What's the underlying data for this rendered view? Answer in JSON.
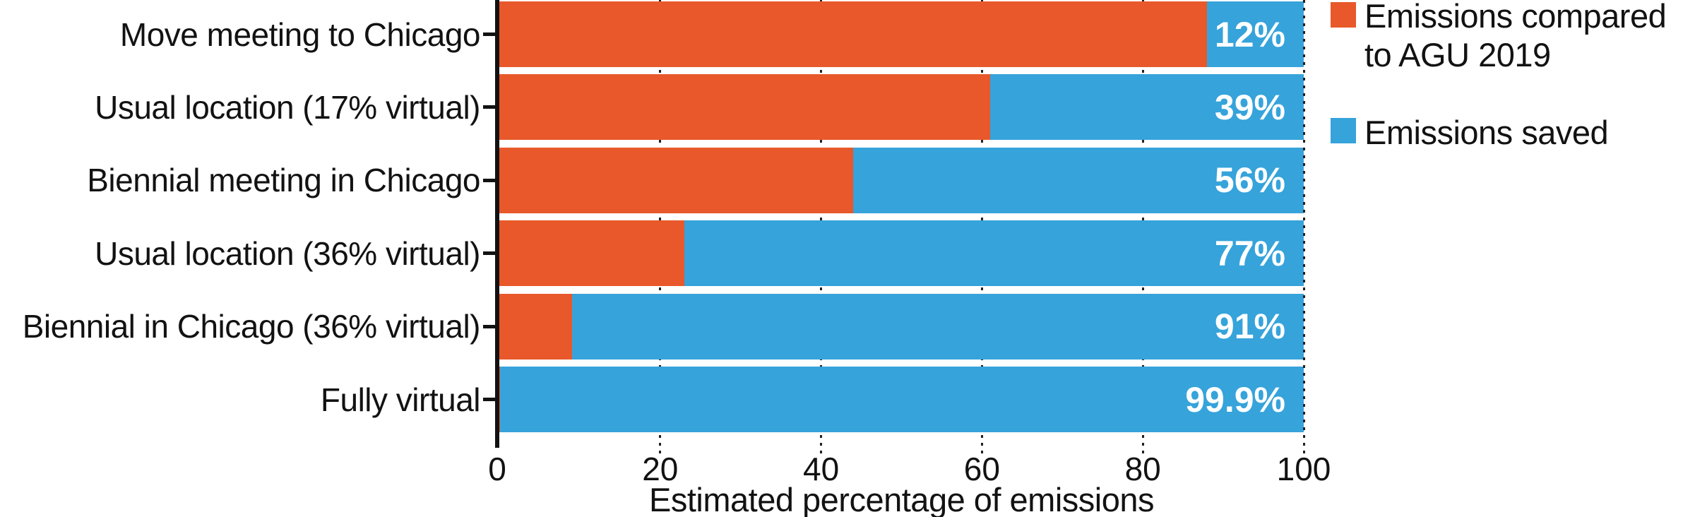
{
  "chart_data": {
    "type": "bar",
    "orientation": "horizontal-stacked",
    "title": "",
    "xlabel": "Estimated percentage of emissions",
    "ylabel": "",
    "xlim": [
      0,
      100
    ],
    "xticks": [
      0,
      20,
      40,
      60,
      80,
      100
    ],
    "grid": "dotted-vertical",
    "legend_position": "right-top",
    "categories": [
      "Move meeting to Chicago",
      "Usual location (17% virtual)",
      "Biennial meeting in Chicago",
      "Usual location (36% virtual)",
      "Biennial in Chicago (36% virtual)",
      "Fully virtual"
    ],
    "series": [
      {
        "name": "Emissions compared to AGU 2019",
        "color": "#E8582A",
        "values": [
          88,
          61,
          44,
          23,
          9,
          0.1
        ]
      },
      {
        "name": "Emissions saved",
        "color": "#36A3DB",
        "values": [
          12,
          39,
          56,
          77,
          91,
          99.9
        ]
      }
    ],
    "bar_labels": [
      "12%",
      "39%",
      "56%",
      "77%",
      "91%",
      "99.9%"
    ]
  },
  "legend": {
    "entries": [
      {
        "label": "Emissions compared to AGU 2019",
        "label_lines": [
          "Emissions compared",
          "to AGU 2019"
        ],
        "color": "#E8582A"
      },
      {
        "label": "Emissions saved",
        "label_lines": [
          "Emissions saved"
        ],
        "color": "#36A3DB"
      }
    ]
  },
  "axis": {
    "title": "Estimated percentage of emissions",
    "tick_labels": [
      "0",
      "20",
      "40",
      "60",
      "80",
      "100"
    ]
  },
  "colors": {
    "emissions_compared": "#E8582A",
    "emissions_saved": "#36A3DB",
    "axis": "#121212",
    "background": "#FFFFFF",
    "bar_value_text": "#FFFFFF"
  }
}
